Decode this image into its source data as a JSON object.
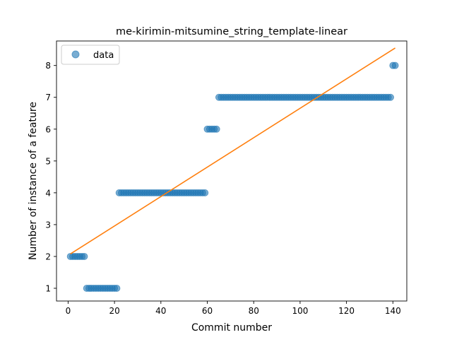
{
  "chart_data": {
    "type": "scatter",
    "title": "me-kirimin-mitsumine_string_template-linear",
    "xlabel": "Commit number",
    "ylabel": "Number of instance of a feature",
    "xlim": [
      -5,
      146
    ],
    "ylim": [
      0.6,
      8.77
    ],
    "xticks": [
      0,
      20,
      40,
      60,
      80,
      100,
      120,
      140
    ],
    "yticks": [
      1,
      2,
      3,
      4,
      5,
      6,
      7,
      8
    ],
    "legend": {
      "position": "top-left",
      "entries": [
        "data"
      ]
    },
    "grid": false,
    "colors": {
      "data": "#1f77b4",
      "fit": "#ff7f0e"
    },
    "segments": [
      {
        "x_start": 1,
        "x_end": 7,
        "y": 2
      },
      {
        "x_start": 8,
        "x_end": 21,
        "y": 1
      },
      {
        "x_start": 22,
        "x_end": 59,
        "y": 4
      },
      {
        "x_start": 60,
        "x_end": 64,
        "y": 6
      },
      {
        "x_start": 65,
        "x_end": 139,
        "y": 7
      },
      {
        "x_start": 140,
        "x_end": 141,
        "y": 8
      }
    ],
    "series": [
      {
        "name": "data",
        "kind": "points",
        "color": "#1f77b4"
      },
      {
        "kind": "line",
        "color": "#ff7f0e",
        "x": [
          1,
          141
        ],
        "y": [
          2.08,
          8.55
        ]
      }
    ]
  }
}
